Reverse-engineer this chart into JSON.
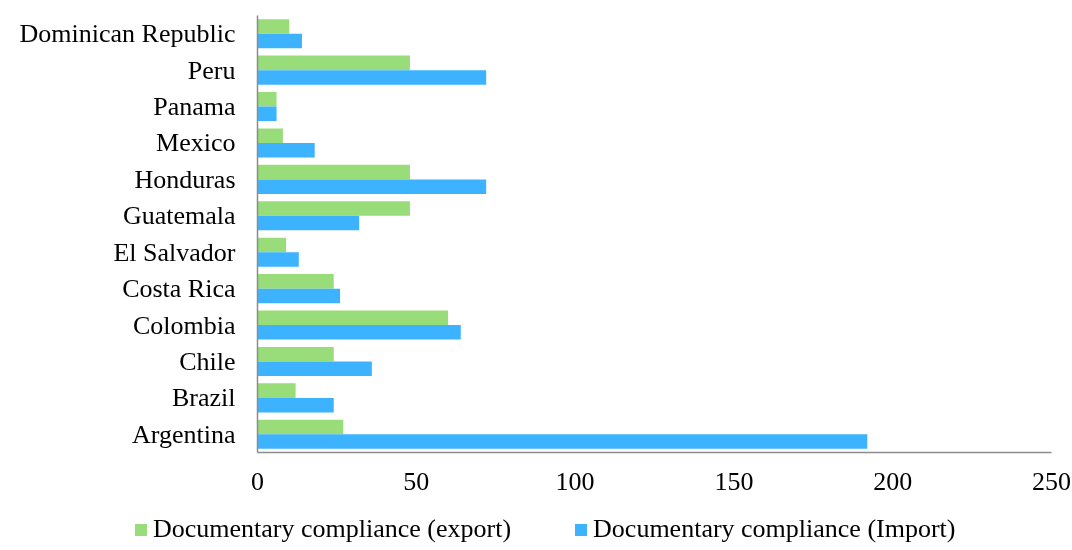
{
  "chart_data": {
    "type": "bar",
    "orientation": "horizontal",
    "categories": [
      "Dominican Republic",
      "Peru",
      "Panama",
      "Mexico",
      "Honduras",
      "Guatemala",
      "El Salvador",
      "Costa Rica",
      "Colombia",
      "Chile",
      "Brazil",
      "Argentina"
    ],
    "series": [
      {
        "name": "Documentary compliance (export)",
        "color": "#99dd7b",
        "values": [
          10,
          48,
          6,
          8,
          48,
          48,
          9,
          24,
          60,
          24,
          12,
          27
        ]
      },
      {
        "name": "Documentary compliance (Import)",
        "color": "#3db3ff",
        "values": [
          14,
          72,
          6,
          18,
          72,
          32,
          13,
          26,
          64,
          36,
          24,
          192
        ]
      }
    ],
    "xlim": [
      0,
      250
    ],
    "xticks": [
      0,
      50,
      100,
      150,
      200,
      250
    ],
    "grid": false,
    "legend": "bottom"
  }
}
